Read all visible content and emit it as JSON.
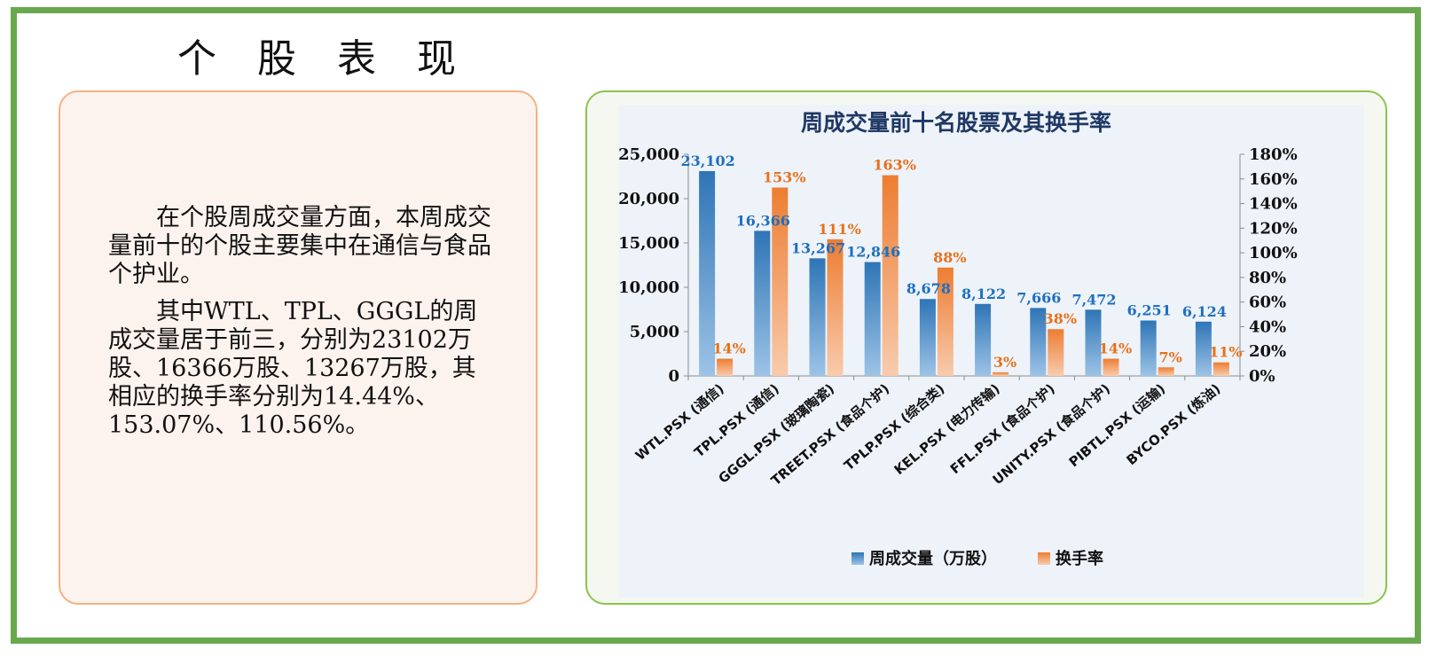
{
  "page": {
    "title": "个 股 表 现"
  },
  "text_panel": {
    "paragraph1": "在个股周成交量方面，本周成交量前十的个股主要集中在通信与食品个护业。",
    "paragraph2": "其中WTL、TPL、GGGL的周成交量居于前三，分别为23102万股、16366万股、13267万股，其相应的换手率分别为14.44%、153.07%、110.56%。"
  },
  "colors": {
    "volume": "#2e75b6",
    "turnover": "#ed7d31",
    "volume_label": "#1f6fbf",
    "turnover_label": "#e8711a",
    "title": "#1f3864"
  },
  "chart_data": {
    "type": "bar",
    "title": "周成交量前十名股票及其换手率",
    "categories": [
      "WTL.PSX (通信)",
      "TPL.PSX (通信)",
      "GGGL.PSX (玻璃陶瓷)",
      "TREET.PSX (食品个护)",
      "TPLP.PSX (综合类)",
      "KEL.PSX (电力传输)",
      "FFL.PSX (食品个护)",
      "UNITY.PSX (食品个护)",
      "PIBTL.PSX (运输)",
      "BYCO.PSX (炼油)"
    ],
    "series": [
      {
        "name": "周成交量（万股）",
        "axis": "left",
        "values": [
          23102,
          16366,
          13267,
          12846,
          8678,
          8122,
          7666,
          7472,
          6251,
          6124
        ],
        "labels": [
          "23,102",
          "16,366",
          "13,267",
          "12,846",
          "8,678",
          "8,122",
          "7,666",
          "7,472",
          "6,251",
          "6,124"
        ]
      },
      {
        "name": "换手率",
        "axis": "right",
        "values": [
          14,
          153,
          111,
          163,
          88,
          3,
          38,
          14,
          7,
          11
        ],
        "labels": [
          "14%",
          "153%",
          "111%",
          "163%",
          "88%",
          "3%",
          "38%",
          "14%",
          "7%",
          "11%"
        ]
      }
    ],
    "y_left": {
      "range": [
        0,
        25000
      ],
      "ticks": [
        0,
        5000,
        10000,
        15000,
        20000,
        25000
      ],
      "tick_labels": [
        "0",
        "5,000",
        "10,000",
        "15,000",
        "20,000",
        "25,000"
      ]
    },
    "y_right": {
      "range": [
        0,
        180
      ],
      "ticks": [
        0,
        20,
        40,
        60,
        80,
        100,
        120,
        140,
        160,
        180
      ],
      "tick_labels": [
        "0%",
        "20%",
        "40%",
        "60%",
        "80%",
        "100%",
        "120%",
        "140%",
        "160%",
        "180%"
      ]
    },
    "legend": {
      "position": "bottom",
      "entries": [
        "周成交量（万股）",
        "换手率"
      ]
    },
    "grid": false
  }
}
